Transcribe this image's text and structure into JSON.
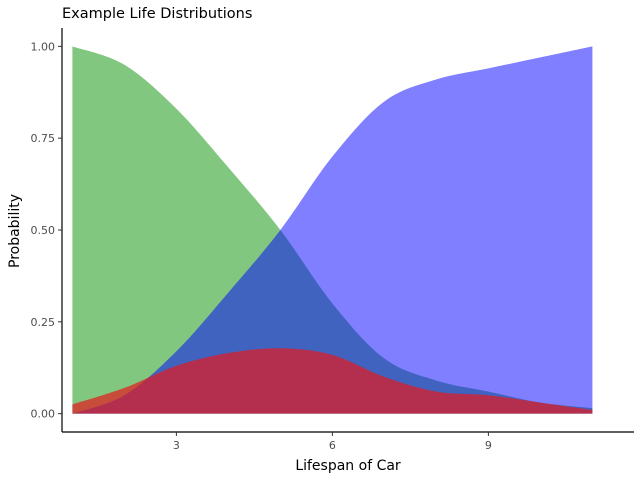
{
  "chart_data": {
    "type": "area",
    "title": "Example Life Distributions",
    "xlabel": "Lifespan of Car",
    "ylabel": "Probability",
    "xlim": [
      0.8,
      11.8
    ],
    "ylim": [
      -0.05,
      1.05
    ],
    "x_ticks": [
      3,
      6,
      9
    ],
    "y_ticks": [
      0.0,
      0.25,
      0.5,
      0.75,
      1.0
    ],
    "x_tick_labels": [
      "3",
      "6",
      "9"
    ],
    "y_tick_labels": [
      "0.00",
      "0.25",
      "0.50",
      "0.75",
      "1.00"
    ],
    "grid": false,
    "legend": "none",
    "x": [
      1,
      2,
      3,
      4,
      5,
      6,
      7,
      8,
      9,
      10,
      11
    ],
    "series": [
      {
        "color": "#4daf4a",
        "opacity": 0.7,
        "values": [
          1.0,
          0.95,
          0.83,
          0.67,
          0.5,
          0.3,
          0.15,
          0.09,
          0.06,
          0.03,
          0.015
        ]
      },
      {
        "color": "#0000ff",
        "opacity": 0.5,
        "values": [
          0.0,
          0.05,
          0.17,
          0.33,
          0.5,
          0.7,
          0.85,
          0.91,
          0.94,
          0.97,
          1.0
        ]
      },
      {
        "color": "#e41a1c",
        "opacity": 0.7,
        "values": [
          0.025,
          0.07,
          0.13,
          0.165,
          0.178,
          0.16,
          0.1,
          0.06,
          0.05,
          0.03,
          0.01
        ]
      }
    ]
  }
}
